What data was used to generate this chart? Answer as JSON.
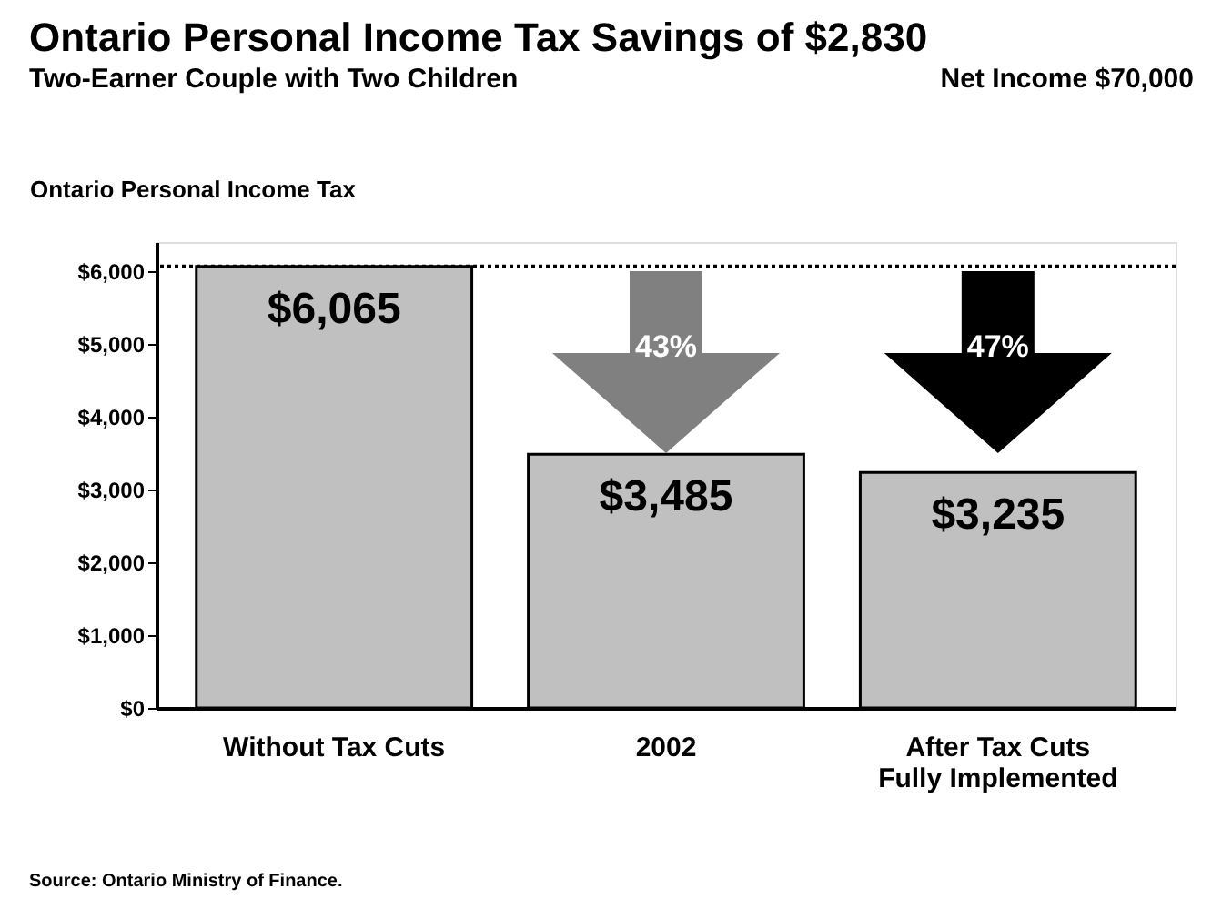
{
  "chart_data": {
    "type": "bar",
    "title": "Ontario Personal Income Tax Savings of $2,830",
    "subtitle": "Two-Earner Couple with Two Children",
    "ylabel": "Ontario Personal Income Tax",
    "categories": [
      "Without Tax Cuts",
      "2002",
      "After Tax Cuts\nFully Implemented"
    ],
    "values": [
      6065,
      3485,
      3235
    ],
    "color": "#c0c0c0",
    "value_labels": [
      "$6,065",
      "$3,485",
      "$3,235"
    ],
    "ylim": [
      0,
      6400
    ],
    "yticks": [
      {
        "value": 0,
        "label": "$0"
      },
      {
        "value": 1000,
        "label": "$1,000"
      },
      {
        "value": 2000,
        "label": "$2,000"
      },
      {
        "value": 3000,
        "label": "$3,000"
      },
      {
        "value": 4000,
        "label": "$4,000"
      },
      {
        "value": 5000,
        "label": "$5,000"
      },
      {
        "value": 6000,
        "label": "$6,000"
      }
    ],
    "ref_lines": [
      {
        "axis": "y",
        "value": 6065,
        "line_style": "dotted"
      }
    ],
    "annotations": [
      "Net Income $70,000",
      "43%",
      "47%",
      "Source: Ontario Ministry of Finance."
    ],
    "grid": false,
    "legend": false
  }
}
